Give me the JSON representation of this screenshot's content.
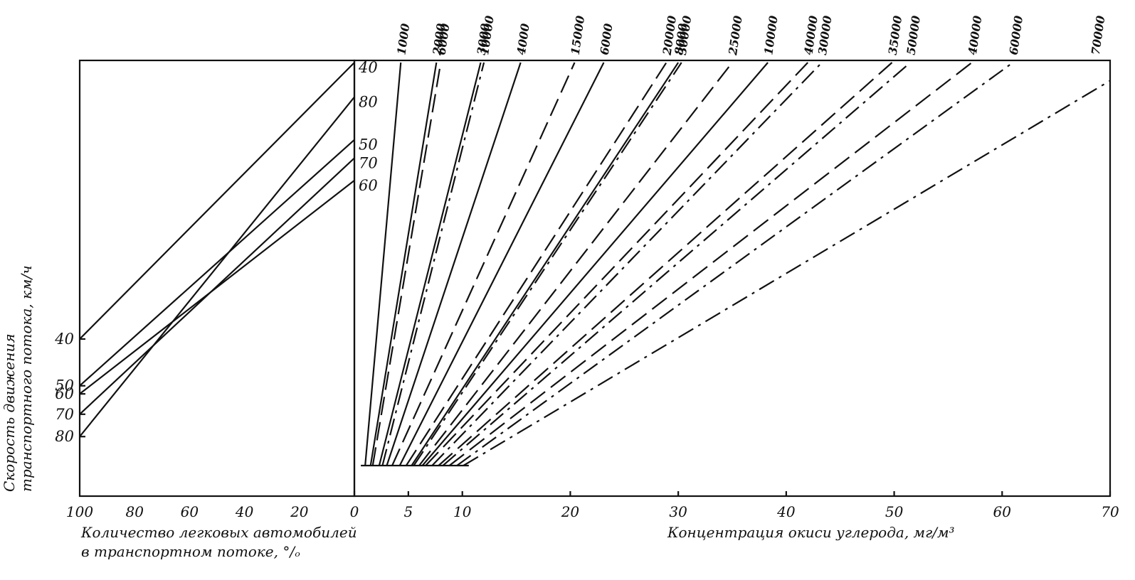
{
  "chart_data": [
    {
      "type": "line",
      "title": "",
      "xlabel": "Количество легковых автомобилей в транспортном потоке, %",
      "xlabel_lines": [
        "Количество легковых автомобилей",
        "в транспортном потоке, °/ₒ"
      ],
      "ylabel": "Скорость движения транспортного потока, км/ч",
      "ylabel_lines": [
        "Скорость движения",
        "транспортного потока, км/ч"
      ],
      "x_reversed": true,
      "xlim": [
        100,
        0
      ],
      "x_ticks": [
        "100",
        "80",
        "60",
        "40",
        "20",
        "0"
      ],
      "speed_ticks_left": [
        "40",
        "50",
        "60",
        "70",
        "80"
      ],
      "speed_labels_right": [
        "40",
        "80",
        "50",
        "70",
        "60"
      ],
      "series": [
        {
          "name": "40",
          "style": "solid",
          "x": [
            100,
            0
          ],
          "speed_position": [
            0.68,
            0.0
          ]
        },
        {
          "name": "50",
          "style": "solid",
          "x": [
            100,
            0
          ],
          "speed_position": [
            0.795,
            0.19
          ]
        },
        {
          "name": "60",
          "style": "solid",
          "x": [
            100,
            0
          ],
          "speed_position": [
            0.815,
            0.29
          ]
        },
        {
          "name": "70",
          "style": "solid",
          "x": [
            100,
            0
          ],
          "speed_position": [
            0.865,
            0.235
          ]
        },
        {
          "name": "80",
          "style": "solid",
          "x": [
            100,
            0
          ],
          "speed_position": [
            0.92,
            0.085
          ]
        }
      ]
    },
    {
      "type": "line",
      "title": "",
      "xlabel": "Концентрация окиси углерода, мг/м³",
      "xlim": [
        0,
        70
      ],
      "x_ticks": [
        "0",
        "5",
        "10",
        "20",
        "30",
        "40",
        "50",
        "60",
        "70"
      ],
      "top_labels": [
        "1000",
        "2000",
        "6000",
        "3000",
        "10000",
        "4000",
        "15000",
        "6000",
        "20000",
        "8000",
        "30000",
        "25000",
        "10000",
        "40000",
        "30000",
        "35000",
        "50000",
        "40000",
        "60000",
        "70000"
      ],
      "series": [
        {
          "name": "1000",
          "style": "solid",
          "x0": 1.0,
          "x_top": 4.3
        },
        {
          "name": "2000",
          "style": "solid",
          "x0": 1.5,
          "x_top": 7.6
        },
        {
          "name": "6000",
          "style": "dashed",
          "x0": 1.7,
          "x_top": 8.0
        },
        {
          "name": "3000",
          "style": "solid",
          "x0": 2.3,
          "x_top": 11.7
        },
        {
          "name": "10000",
          "style": "dashdot",
          "x0": 2.6,
          "x_top": 12.0
        },
        {
          "name": "4000",
          "style": "solid",
          "x0": 3.0,
          "x_top": 15.4
        },
        {
          "name": "15000",
          "style": "dashed",
          "x0": 3.5,
          "x_top": 20.4
        },
        {
          "name": "6000",
          "style": "solid",
          "x0": 4.2,
          "x_top": 23.1
        },
        {
          "name": "20000",
          "style": "dashed",
          "x0": 4.8,
          "x_top": 28.9
        },
        {
          "name": "8000",
          "style": "solid",
          "x0": 5.3,
          "x_top": 30.0
        },
        {
          "name": "30000",
          "style": "dashdot",
          "x0": 5.5,
          "x_top": 30.3
        },
        {
          "name": "25000",
          "style": "dashed",
          "x0": 6.0,
          "x_top": 35.0
        },
        {
          "name": "10000",
          "style": "solid",
          "x0": 6.3,
          "x_top": 38.3
        },
        {
          "name": "40000",
          "style": "dashed",
          "x0": 6.6,
          "x_top": 42.0
        },
        {
          "name": "30000",
          "style": "dashdot",
          "x0": 7.2,
          "x_top": 43.3
        },
        {
          "name": "35000",
          "style": "dashed",
          "x0": 7.8,
          "x_top": 49.8
        },
        {
          "name": "50000",
          "style": "dashdot",
          "x0": 8.2,
          "x_top": 51.5
        },
        {
          "name": "40000",
          "style": "dashed",
          "x0": 8.8,
          "x_top": 57.2
        },
        {
          "name": "60000",
          "style": "dashdot",
          "x0": 9.5,
          "x_top": 61.0
        },
        {
          "name": "70000",
          "style": "dashdot",
          "x0": 10.1,
          "x_end": 70.0,
          "end_height_fraction": 0.955
        }
      ]
    }
  ]
}
